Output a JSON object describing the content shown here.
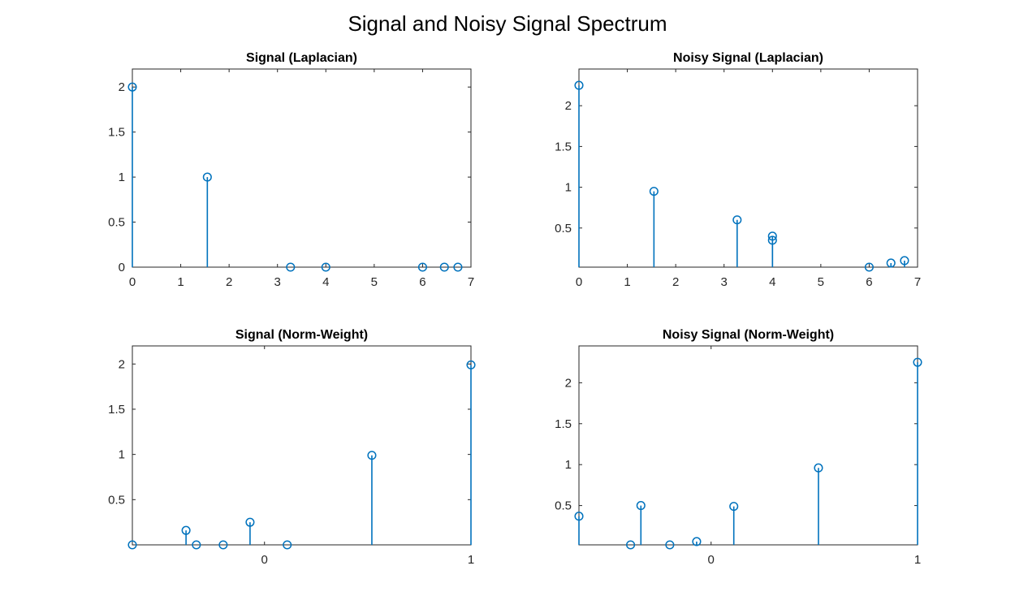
{
  "figure": {
    "title": "Signal and Noisy Signal Spectrum",
    "stem_color": "#0072BD",
    "axis_color": "#262626",
    "background": "#ffffff"
  },
  "chart_data": [
    {
      "type": "stem",
      "title": "Signal (Laplacian)",
      "xlabel": "",
      "ylabel": "",
      "xlim": [
        0,
        7
      ],
      "ylim": [
        0,
        2.2
      ],
      "xticks": [
        0,
        1,
        2,
        3,
        4,
        5,
        6,
        7
      ],
      "xtick_labels": [
        "0",
        "1",
        "2",
        "3",
        "4",
        "5",
        "6",
        "7"
      ],
      "yticks": [
        0,
        0.5,
        1,
        1.5,
        2
      ],
      "ytick_labels": [
        "0",
        "0.5",
        "1",
        "1.5",
        "2"
      ],
      "grid": false,
      "x": [
        0,
        1.55,
        3.27,
        4.0,
        6.0,
        6.45,
        6.73
      ],
      "y": [
        2.0,
        1.0,
        0.0,
        0.0,
        0.0,
        0.0,
        0.0
      ]
    },
    {
      "type": "stem",
      "title": "Noisy Signal (Laplacian)",
      "xlabel": "",
      "ylabel": "",
      "xlim": [
        0,
        7
      ],
      "ylim": [
        0.02,
        2.45
      ],
      "xticks": [
        0,
        1,
        2,
        3,
        4,
        5,
        6,
        7
      ],
      "xtick_labels": [
        "0",
        "1",
        "2",
        "3",
        "4",
        "5",
        "6",
        "7"
      ],
      "yticks": [
        0.5,
        1,
        1.5,
        2
      ],
      "ytick_labels": [
        "0.5",
        "1",
        "1.5",
        "2"
      ],
      "grid": false,
      "x": [
        0,
        1.55,
        3.27,
        4.0,
        4.0,
        6.0,
        6.45,
        6.73
      ],
      "y": [
        2.25,
        0.95,
        0.6,
        0.4,
        0.35,
        0.02,
        0.07,
        0.1
      ]
    },
    {
      "type": "stem",
      "title": "Signal (Norm-Weight)",
      "xlabel": "",
      "ylabel": "",
      "xlim": [
        -0.64,
        1
      ],
      "ylim": [
        0,
        2.2
      ],
      "xticks": [
        0,
        1
      ],
      "xtick_labels": [
        "0",
        "1"
      ],
      "yticks": [
        0.5,
        1,
        1.5,
        2
      ],
      "ytick_labels": [
        "0.5",
        "1",
        "1.5",
        "2"
      ],
      "grid": false,
      "x": [
        -0.64,
        -0.38,
        -0.33,
        -0.2,
        -0.07,
        0.11,
        0.52,
        1.0
      ],
      "y": [
        0.0,
        0.16,
        0.0,
        0.0,
        0.25,
        0.0,
        0.99,
        1.99
      ]
    },
    {
      "type": "stem",
      "title": "Noisy Signal (Norm-Weight)",
      "xlabel": "",
      "ylabel": "",
      "xlim": [
        -0.64,
        1
      ],
      "ylim": [
        0.02,
        2.45
      ],
      "xticks": [
        0,
        1
      ],
      "xtick_labels": [
        "0",
        "1"
      ],
      "yticks": [
        0.5,
        1,
        1.5,
        2
      ],
      "ytick_labels": [
        "0.5",
        "1",
        "1.5",
        "2"
      ],
      "grid": false,
      "x": [
        -0.64,
        -0.39,
        -0.34,
        -0.2,
        -0.07,
        0.11,
        0.52,
        1.0
      ],
      "y": [
        0.37,
        0.02,
        0.5,
        0.02,
        0.06,
        0.49,
        0.96,
        2.25
      ]
    }
  ]
}
